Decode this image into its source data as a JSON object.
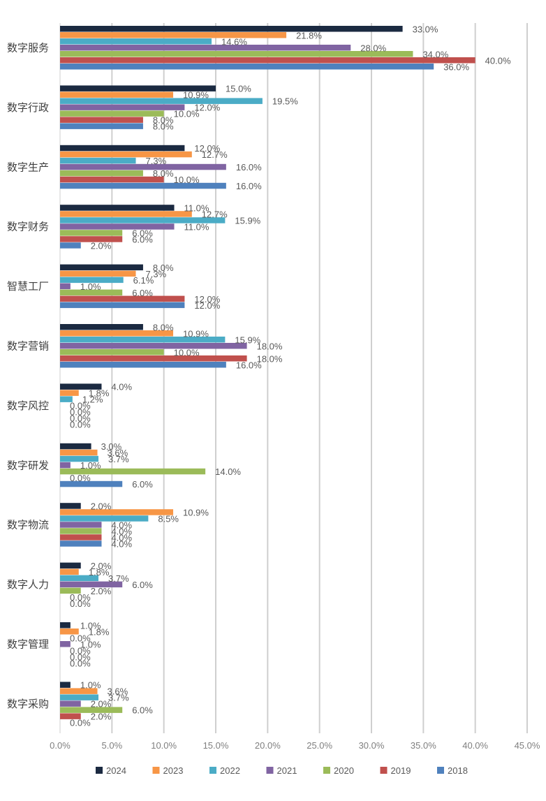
{
  "chart_data": {
    "type": "bar",
    "orientation": "horizontal",
    "categories": [
      "数字服务",
      "数字行政",
      "数字生产",
      "数字财务",
      "智慧工厂",
      "数字营销",
      "数字风控",
      "数字研发",
      "数字物流",
      "数字人力",
      "数字管理",
      "数字采购"
    ],
    "series": [
      {
        "name": "2024",
        "color": "#1b2a41",
        "values": [
          33.0,
          15.0,
          12.0,
          11.0,
          8.0,
          8.0,
          4.0,
          3.0,
          2.0,
          2.0,
          1.0,
          1.0
        ]
      },
      {
        "name": "2023",
        "color": "#f79646",
        "values": [
          21.8,
          10.9,
          12.7,
          12.7,
          7.3,
          10.9,
          1.8,
          3.6,
          10.9,
          1.8,
          1.8,
          3.6
        ]
      },
      {
        "name": "2022",
        "color": "#4bacc6",
        "values": [
          14.6,
          19.5,
          7.3,
          15.9,
          6.1,
          15.9,
          1.2,
          3.7,
          8.5,
          3.7,
          0.0,
          3.7
        ]
      },
      {
        "name": "2021",
        "color": "#8064a2",
        "values": [
          28.0,
          12.0,
          16.0,
          11.0,
          1.0,
          18.0,
          0.0,
          1.0,
          4.0,
          6.0,
          1.0,
          2.0
        ]
      },
      {
        "name": "2020",
        "color": "#9bbb59",
        "values": [
          34.0,
          10.0,
          8.0,
          6.0,
          6.0,
          10.0,
          0.0,
          14.0,
          4.0,
          2.0,
          0.0,
          6.0
        ]
      },
      {
        "name": "2019",
        "color": "#c0504d",
        "values": [
          40.0,
          8.0,
          10.0,
          6.0,
          12.0,
          18.0,
          0.0,
          0.0,
          4.0,
          0.0,
          0.0,
          2.0
        ]
      },
      {
        "name": "2018",
        "color": "#4f81bd",
        "values": [
          36.0,
          8.0,
          16.0,
          2.0,
          12.0,
          16.0,
          0.0,
          6.0,
          4.0,
          0.0,
          0.0,
          0.0
        ]
      }
    ],
    "xlim": [
      0,
      45
    ],
    "x_ticks": [
      "0.0%",
      "5.0%",
      "10.0%",
      "15.0%",
      "20.0%",
      "25.0%",
      "30.0%",
      "35.0%",
      "40.0%",
      "45.0%"
    ],
    "value_suffix": "%",
    "grid": "vertical",
    "legend_position": "bottom"
  }
}
